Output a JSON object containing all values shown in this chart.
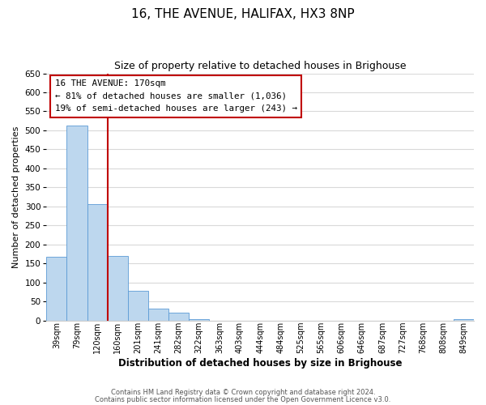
{
  "title": "16, THE AVENUE, HALIFAX, HX3 8NP",
  "subtitle": "Size of property relative to detached houses in Brighouse",
  "xlabel": "Distribution of detached houses by size in Brighouse",
  "ylabel": "Number of detached properties",
  "categories": [
    "39sqm",
    "79sqm",
    "120sqm",
    "160sqm",
    "201sqm",
    "241sqm",
    "282sqm",
    "322sqm",
    "363sqm",
    "403sqm",
    "444sqm",
    "484sqm",
    "525sqm",
    "565sqm",
    "606sqm",
    "646sqm",
    "687sqm",
    "727sqm",
    "768sqm",
    "808sqm",
    "849sqm"
  ],
  "values": [
    167,
    512,
    305,
    170,
    78,
    32,
    20,
    4,
    0,
    0,
    0,
    0,
    0,
    0,
    0,
    0,
    0,
    0,
    0,
    0,
    4
  ],
  "bar_color": "#bdd7ee",
  "bar_edge_color": "#5b9bd5",
  "vline_color": "#c00000",
  "ylim": [
    0,
    650
  ],
  "yticks": [
    0,
    50,
    100,
    150,
    200,
    250,
    300,
    350,
    400,
    450,
    500,
    550,
    600,
    650
  ],
  "annotation_title": "16 THE AVENUE: 170sqm",
  "annotation_line1": "← 81% of detached houses are smaller (1,036)",
  "annotation_line2": "19% of semi-detached houses are larger (243) →",
  "annotation_box_color": "#ffffff",
  "annotation_box_edge": "#c00000",
  "footer_line1": "Contains HM Land Registry data © Crown copyright and database right 2024.",
  "footer_line2": "Contains public sector information licensed under the Open Government Licence v3.0.",
  "background_color": "#ffffff",
  "grid_color": "#d9d9d9"
}
